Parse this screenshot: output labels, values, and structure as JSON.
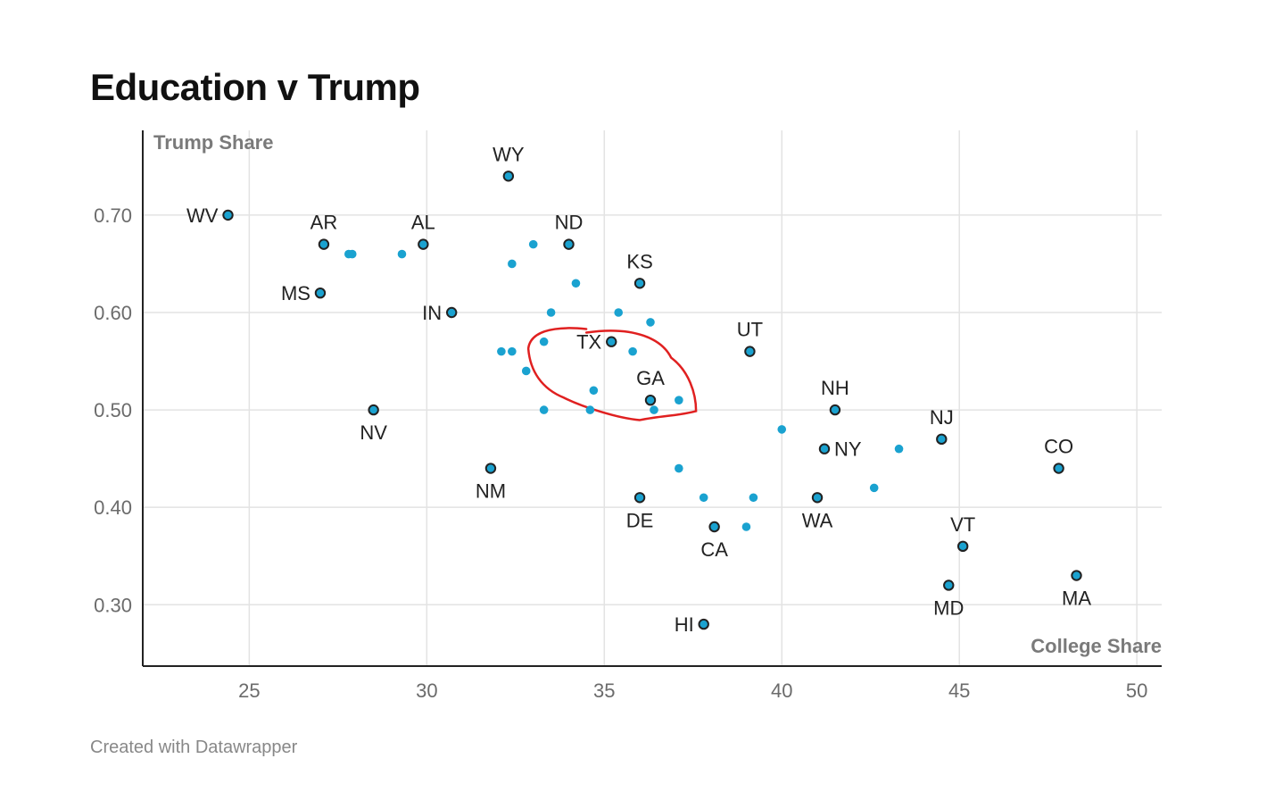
{
  "chart_data": {
    "type": "scatter",
    "title": "Education v Trump",
    "xlabel": "College Share",
    "ylabel": "Trump Share",
    "xlim": [
      22,
      50.7
    ],
    "ylim": [
      0.237,
      0.787
    ],
    "xticks": [
      {
        "value": 25,
        "label": "25"
      },
      {
        "value": 30,
        "label": "30"
      },
      {
        "value": 35,
        "label": "35"
      },
      {
        "value": 40,
        "label": "40"
      },
      {
        "value": 45,
        "label": "45"
      },
      {
        "value": 50,
        "label": "50"
      }
    ],
    "yticks": [
      {
        "value": 0.3,
        "label": "0.30"
      },
      {
        "value": 0.4,
        "label": "0.40"
      },
      {
        "value": 0.5,
        "label": "0.50"
      },
      {
        "value": 0.6,
        "label": "0.60"
      },
      {
        "value": 0.7,
        "label": "0.70"
      }
    ],
    "grid": true,
    "colors": {
      "point": "#1aa2d0",
      "point_outline": "#222222",
      "highlight": "#e02020",
      "grid": "#e3e3e3",
      "axis": "#222222"
    },
    "labeled_points": [
      {
        "label": "WY",
        "x": 32.3,
        "y": 0.74,
        "pos": "top"
      },
      {
        "label": "WV",
        "x": 24.4,
        "y": 0.7,
        "pos": "left"
      },
      {
        "label": "AR",
        "x": 27.1,
        "y": 0.67,
        "pos": "top"
      },
      {
        "label": "AL",
        "x": 29.9,
        "y": 0.67,
        "pos": "top"
      },
      {
        "label": "ND",
        "x": 34.0,
        "y": 0.67,
        "pos": "top"
      },
      {
        "label": "KS",
        "x": 36.0,
        "y": 0.63,
        "pos": "top"
      },
      {
        "label": "MS",
        "x": 27.0,
        "y": 0.62,
        "pos": "left"
      },
      {
        "label": "IN",
        "x": 30.7,
        "y": 0.6,
        "pos": "left"
      },
      {
        "label": "UT",
        "x": 39.1,
        "y": 0.56,
        "pos": "top"
      },
      {
        "label": "TX",
        "x": 35.2,
        "y": 0.57,
        "pos": "left"
      },
      {
        "label": "GA",
        "x": 36.3,
        "y": 0.51,
        "pos": "top"
      },
      {
        "label": "NH",
        "x": 41.5,
        "y": 0.5,
        "pos": "top"
      },
      {
        "label": "NV",
        "x": 28.5,
        "y": 0.5,
        "pos": "bottom"
      },
      {
        "label": "NJ",
        "x": 44.5,
        "y": 0.47,
        "pos": "top"
      },
      {
        "label": "NY",
        "x": 41.2,
        "y": 0.46,
        "pos": "right"
      },
      {
        "label": "CO",
        "x": 47.8,
        "y": 0.44,
        "pos": "top"
      },
      {
        "label": "NM",
        "x": 31.8,
        "y": 0.44,
        "pos": "bottom"
      },
      {
        "label": "DE",
        "x": 36.0,
        "y": 0.41,
        "pos": "bottom"
      },
      {
        "label": "WA",
        "x": 41.0,
        "y": 0.41,
        "pos": "bottom"
      },
      {
        "label": "CA",
        "x": 38.1,
        "y": 0.38,
        "pos": "bottom"
      },
      {
        "label": "VT",
        "x": 45.1,
        "y": 0.36,
        "pos": "top"
      },
      {
        "label": "MD",
        "x": 44.7,
        "y": 0.32,
        "pos": "bottom"
      },
      {
        "label": "MA",
        "x": 48.3,
        "y": 0.33,
        "pos": "bottom"
      },
      {
        "label": "HI",
        "x": 37.8,
        "y": 0.28,
        "pos": "left"
      }
    ],
    "unlabeled_points": [
      {
        "x": 27.8,
        "y": 0.66
      },
      {
        "x": 27.9,
        "y": 0.66
      },
      {
        "x": 29.3,
        "y": 0.66
      },
      {
        "x": 33.0,
        "y": 0.67
      },
      {
        "x": 32.4,
        "y": 0.65
      },
      {
        "x": 34.2,
        "y": 0.63
      },
      {
        "x": 33.5,
        "y": 0.6
      },
      {
        "x": 35.4,
        "y": 0.6
      },
      {
        "x": 36.3,
        "y": 0.59
      },
      {
        "x": 33.3,
        "y": 0.57
      },
      {
        "x": 32.1,
        "y": 0.56
      },
      {
        "x": 32.4,
        "y": 0.56
      },
      {
        "x": 35.8,
        "y": 0.56
      },
      {
        "x": 32.8,
        "y": 0.54
      },
      {
        "x": 34.7,
        "y": 0.52
      },
      {
        "x": 37.1,
        "y": 0.51
      },
      {
        "x": 33.3,
        "y": 0.5
      },
      {
        "x": 34.6,
        "y": 0.5
      },
      {
        "x": 36.4,
        "y": 0.5
      },
      {
        "x": 40.0,
        "y": 0.48
      },
      {
        "x": 43.3,
        "y": 0.46
      },
      {
        "x": 37.1,
        "y": 0.44
      },
      {
        "x": 42.6,
        "y": 0.42
      },
      {
        "x": 37.8,
        "y": 0.41
      },
      {
        "x": 39.2,
        "y": 0.41
      },
      {
        "x": 39.0,
        "y": 0.38
      }
    ],
    "annotations": [
      {
        "type": "hand-drawn-circle",
        "around": [
          "TX",
          "GA"
        ],
        "color": "#e02020"
      }
    ]
  },
  "footer": {
    "credit": "Created with Datawrapper"
  }
}
